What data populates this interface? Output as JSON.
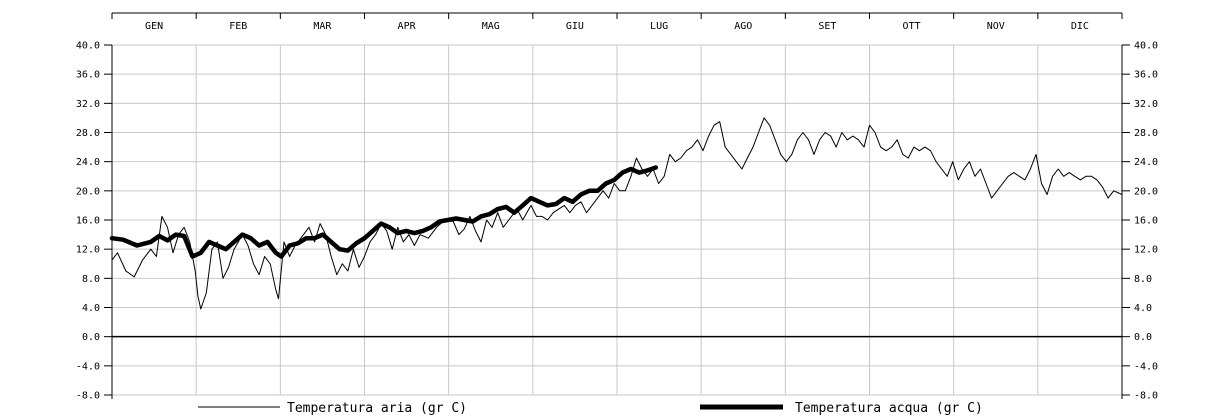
{
  "chart_data": {
    "type": "line",
    "months": [
      "GEN",
      "FEB",
      "MAR",
      "APR",
      "MAG",
      "GIU",
      "LUG",
      "AGO",
      "SET",
      "OTT",
      "NOV",
      "DIC"
    ],
    "y_ticks": [
      "40.0",
      "36.0",
      "32.0",
      "28.0",
      "24.0",
      "20.0",
      "16.0",
      "12.0",
      "8.0",
      "4.0",
      "0.0",
      "-4.0",
      "-8.0"
    ],
    "ylim": [
      -8,
      40
    ],
    "xlim": [
      1,
      365
    ],
    "grid": true,
    "reference_line": 0,
    "legend_position": "bottom",
    "series": [
      {
        "name": "Temperatura aria (gr C)",
        "style": "thin",
        "color": "#000000",
        "points": [
          [
            1,
            10.5
          ],
          [
            3,
            11.5
          ],
          [
            6,
            9
          ],
          [
            9,
            8.2
          ],
          [
            12,
            10.5
          ],
          [
            15,
            12
          ],
          [
            17,
            11
          ],
          [
            19,
            16.5
          ],
          [
            21,
            15
          ],
          [
            23,
            11.5
          ],
          [
            25,
            14
          ],
          [
            27,
            15
          ],
          [
            29,
            13
          ],
          [
            31,
            9
          ],
          [
            32,
            5.5
          ],
          [
            33,
            3.8
          ],
          [
            35,
            6
          ],
          [
            37,
            12
          ],
          [
            39,
            13
          ],
          [
            41,
            8
          ],
          [
            43,
            9.5
          ],
          [
            45,
            12
          ],
          [
            48,
            14
          ],
          [
            50,
            12.5
          ],
          [
            52,
            10
          ],
          [
            54,
            8.5
          ],
          [
            56,
            11
          ],
          [
            58,
            10
          ],
          [
            60,
            6.5
          ],
          [
            61,
            5.2
          ],
          [
            63,
            13
          ],
          [
            65,
            11
          ],
          [
            67,
            12.5
          ],
          [
            70,
            14
          ],
          [
            72,
            15
          ],
          [
            74,
            13
          ],
          [
            76,
            15.5
          ],
          [
            78,
            14
          ],
          [
            80,
            11
          ],
          [
            82,
            8.5
          ],
          [
            84,
            10
          ],
          [
            86,
            9
          ],
          [
            88,
            12
          ],
          [
            90,
            9.5
          ],
          [
            92,
            11
          ],
          [
            94,
            13
          ],
          [
            96,
            14
          ],
          [
            98,
            15.5
          ],
          [
            100,
            14.5
          ],
          [
            102,
            12
          ],
          [
            104,
            15
          ],
          [
            106,
            13
          ],
          [
            108,
            14
          ],
          [
            110,
            12.5
          ],
          [
            112,
            14
          ],
          [
            115,
            13.5
          ],
          [
            118,
            15
          ],
          [
            121,
            16
          ],
          [
            124,
            15.8
          ],
          [
            126,
            14
          ],
          [
            128,
            14.8
          ],
          [
            130,
            16.5
          ],
          [
            132,
            14.5
          ],
          [
            134,
            13
          ],
          [
            136,
            16
          ],
          [
            138,
            15
          ],
          [
            140,
            17
          ],
          [
            142,
            15
          ],
          [
            144,
            16
          ],
          [
            147,
            17.5
          ],
          [
            149,
            16
          ],
          [
            152,
            18
          ],
          [
            154,
            16.5
          ],
          [
            156,
            16.5
          ],
          [
            158,
            16
          ],
          [
            160,
            17
          ],
          [
            162,
            17.5
          ],
          [
            164,
            18
          ],
          [
            166,
            17
          ],
          [
            168,
            18
          ],
          [
            170,
            18.5
          ],
          [
            172,
            17
          ],
          [
            174,
            18
          ],
          [
            176,
            19
          ],
          [
            178,
            20
          ],
          [
            180,
            19
          ],
          [
            182,
            21
          ],
          [
            184,
            20
          ],
          [
            186,
            20
          ],
          [
            188,
            22
          ],
          [
            190,
            24.5
          ],
          [
            192,
            23
          ],
          [
            194,
            22
          ],
          [
            196,
            23
          ],
          [
            198,
            21
          ],
          [
            200,
            22
          ],
          [
            202,
            25
          ],
          [
            204,
            24
          ],
          [
            206,
            24.5
          ],
          [
            208,
            25.5
          ],
          [
            210,
            26
          ],
          [
            212,
            27
          ],
          [
            214,
            25.5
          ],
          [
            216,
            27.5
          ],
          [
            218,
            29
          ],
          [
            220,
            29.5
          ],
          [
            222,
            26
          ],
          [
            224,
            25
          ],
          [
            226,
            24
          ],
          [
            228,
            23
          ],
          [
            230,
            24.5
          ],
          [
            232,
            26
          ],
          [
            234,
            28
          ],
          [
            236,
            30
          ],
          [
            238,
            29
          ],
          [
            240,
            27
          ],
          [
            242,
            25
          ],
          [
            244,
            24
          ],
          [
            246,
            25
          ],
          [
            248,
            27
          ],
          [
            250,
            28
          ],
          [
            252,
            27
          ],
          [
            254,
            25
          ],
          [
            256,
            27
          ],
          [
            258,
            28
          ],
          [
            260,
            27.5
          ],
          [
            262,
            26
          ],
          [
            264,
            28
          ],
          [
            266,
            27
          ],
          [
            268,
            27.5
          ],
          [
            270,
            27
          ],
          [
            272,
            26
          ],
          [
            274,
            29
          ],
          [
            276,
            28
          ],
          [
            278,
            26
          ],
          [
            280,
            25.5
          ],
          [
            282,
            26
          ],
          [
            284,
            27
          ],
          [
            286,
            25
          ],
          [
            288,
            24.5
          ],
          [
            290,
            26
          ],
          [
            292,
            25.5
          ],
          [
            294,
            26
          ],
          [
            296,
            25.5
          ],
          [
            298,
            24
          ],
          [
            300,
            23
          ],
          [
            302,
            22
          ],
          [
            304,
            24
          ],
          [
            306,
            21.5
          ],
          [
            308,
            23
          ],
          [
            310,
            24
          ],
          [
            312,
            22
          ],
          [
            314,
            23
          ],
          [
            316,
            21
          ],
          [
            318,
            19
          ],
          [
            320,
            20
          ],
          [
            322,
            21
          ],
          [
            324,
            22
          ],
          [
            326,
            22.5
          ],
          [
            328,
            22
          ],
          [
            330,
            21.5
          ],
          [
            332,
            23
          ],
          [
            334,
            25
          ],
          [
            336,
            21
          ],
          [
            338,
            19.5
          ],
          [
            340,
            22
          ],
          [
            342,
            23
          ],
          [
            344,
            22
          ],
          [
            346,
            22.5
          ],
          [
            348,
            22
          ],
          [
            350,
            21.5
          ],
          [
            352,
            22
          ],
          [
            354,
            22
          ],
          [
            356,
            21.5
          ],
          [
            358,
            20.5
          ],
          [
            360,
            19
          ],
          [
            362,
            20
          ],
          [
            365,
            19.5
          ]
        ]
      },
      {
        "name": "Temperatura acqua (gr C)",
        "style": "thick",
        "color": "#000000",
        "points": [
          [
            1,
            13.5
          ],
          [
            5,
            13.3
          ],
          [
            10,
            12.5
          ],
          [
            15,
            13
          ],
          [
            18,
            13.8
          ],
          [
            21,
            13.2
          ],
          [
            24,
            14
          ],
          [
            27,
            13.8
          ],
          [
            30,
            11
          ],
          [
            33,
            11.5
          ],
          [
            36,
            13
          ],
          [
            39,
            12.5
          ],
          [
            42,
            12
          ],
          [
            45,
            13
          ],
          [
            48,
            14
          ],
          [
            51,
            13.5
          ],
          [
            54,
            12.5
          ],
          [
            57,
            13
          ],
          [
            60,
            11.5
          ],
          [
            62,
            11
          ],
          [
            65,
            12.5
          ],
          [
            68,
            12.8
          ],
          [
            71,
            13.5
          ],
          [
            74,
            13.5
          ],
          [
            77,
            14
          ],
          [
            80,
            13
          ],
          [
            83,
            12
          ],
          [
            86,
            11.8
          ],
          [
            89,
            12.8
          ],
          [
            92,
            13.5
          ],
          [
            95,
            14.5
          ],
          [
            98,
            15.5
          ],
          [
            101,
            15
          ],
          [
            104,
            14.2
          ],
          [
            107,
            14.5
          ],
          [
            110,
            14.2
          ],
          [
            113,
            14.5
          ],
          [
            116,
            15
          ],
          [
            119,
            15.8
          ],
          [
            122,
            16
          ],
          [
            125,
            16.2
          ],
          [
            128,
            16
          ],
          [
            131,
            15.8
          ],
          [
            134,
            16.5
          ],
          [
            137,
            16.8
          ],
          [
            140,
            17.5
          ],
          [
            143,
            17.8
          ],
          [
            146,
            17
          ],
          [
            149,
            18
          ],
          [
            152,
            19
          ],
          [
            155,
            18.5
          ],
          [
            158,
            18
          ],
          [
            161,
            18.2
          ],
          [
            164,
            19
          ],
          [
            167,
            18.5
          ],
          [
            170,
            19.5
          ],
          [
            173,
            20
          ],
          [
            176,
            20
          ],
          [
            179,
            21
          ],
          [
            182,
            21.5
          ],
          [
            185,
            22.5
          ],
          [
            188,
            23
          ],
          [
            191,
            22.5
          ],
          [
            194,
            22.8
          ],
          [
            197,
            23.2
          ]
        ]
      }
    ]
  },
  "legend": {
    "air_label": "Temperatura aria (gr C)",
    "water_label": "Temperatura acqua (gr C)"
  }
}
